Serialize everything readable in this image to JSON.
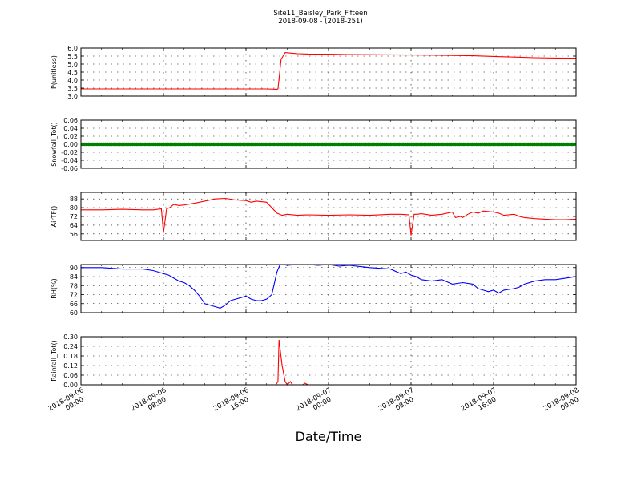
{
  "figure": {
    "title_line1": "Site11_Baisley_Park_Fifteen",
    "title_line2": "2018-09-08 - (2018-251)",
    "xlabel": "Date/Time",
    "x_ticks": [
      {
        "l1": "2018-09-06",
        "l2": "00:00",
        "h": 0
      },
      {
        "l1": "2018-09-06",
        "l2": "08:00",
        "h": 8
      },
      {
        "l1": "2018-09-06",
        "l2": "16:00",
        "h": 16
      },
      {
        "l1": "2018-09-07",
        "l2": "00:00",
        "h": 24
      },
      {
        "l1": "2018-09-07",
        "l2": "08:00",
        "h": 32
      },
      {
        "l1": "2018-09-07",
        "l2": "16:00",
        "h": 40
      },
      {
        "l1": "2018-09-08",
        "l2": "00:00",
        "h": 48
      }
    ]
  },
  "chart_data": [
    {
      "type": "line",
      "ylabel": "P(unitless)",
      "ylim": [
        3.0,
        6.0
      ],
      "yticks": [
        "3.0",
        "3.5",
        "4.0",
        "4.5",
        "5.0",
        "5.5",
        "6.0"
      ],
      "grid": true,
      "color": "#ff0000",
      "series": [
        {
          "x_hours": [
            0,
            18,
            19,
            19.1,
            19.4,
            19.8,
            20.5,
            21,
            22,
            24,
            26,
            28,
            30,
            32,
            34,
            36,
            38,
            40,
            42,
            44,
            46,
            48
          ],
          "values": [
            3.45,
            3.45,
            3.43,
            3.45,
            5.3,
            5.72,
            5.68,
            5.65,
            5.63,
            5.62,
            5.6,
            5.59,
            5.58,
            5.57,
            5.56,
            5.54,
            5.52,
            5.48,
            5.44,
            5.4,
            5.38,
            5.37
          ]
        }
      ]
    },
    {
      "type": "line",
      "ylabel": "Snowfall_Tot()",
      "ylim": [
        -0.06,
        0.06
      ],
      "yticks": [
        "-0.06",
        "-0.04",
        "-0.02",
        "0.00",
        "0.02",
        "0.04",
        "0.06"
      ],
      "grid": true,
      "color": "#008000",
      "markers": true,
      "series": [
        {
          "x_hours": [
            0,
            48
          ],
          "values": [
            0,
            0
          ]
        }
      ]
    },
    {
      "type": "line",
      "ylabel": "AirTF()",
      "ylim": [
        50,
        94
      ],
      "yticks": [
        "56",
        "64",
        "72",
        "80",
        "88"
      ],
      "grid": true,
      "color": "#ff0000",
      "series": [
        {
          "x_hours": [
            0,
            2,
            4,
            6,
            7,
            7.8,
            8,
            8.3,
            8.6,
            9,
            9.5,
            10,
            11,
            12,
            13,
            14,
            15,
            16,
            16.5,
            17,
            17.5,
            18,
            18.5,
            19,
            19.5,
            20,
            21,
            22,
            24,
            26,
            28,
            30,
            31,
            31.8,
            32,
            32.3,
            32.6,
            33,
            34,
            35,
            36,
            36.3,
            36.8,
            37,
            37.5,
            38,
            38.5,
            39,
            40,
            40.5,
            41,
            42,
            42.5,
            43,
            44,
            45,
            46,
            47,
            48
          ],
          "values": [
            78,
            78,
            78.5,
            78,
            78,
            79,
            57,
            79,
            80,
            83,
            82,
            82.5,
            84,
            86,
            88,
            88.5,
            87,
            86.5,
            85,
            86,
            85.5,
            85,
            80,
            75,
            73,
            74,
            73,
            73.5,
            73,
            73.5,
            73,
            74,
            74,
            73.5,
            55,
            74,
            74,
            74.5,
            73,
            74,
            76,
            71,
            72,
            71,
            74,
            76,
            75,
            77,
            76,
            75,
            73,
            74,
            72,
            71,
            70,
            69.5,
            69,
            69,
            69.5
          ]
        }
      ]
    },
    {
      "type": "line",
      "ylabel": "RH(%)",
      "ylim": [
        60,
        92
      ],
      "yticks": [
        "60",
        "66",
        "72",
        "78",
        "84",
        "90"
      ],
      "grid": true,
      "color": "#0000ff",
      "series": [
        {
          "x_hours": [
            0,
            2,
            4,
            6,
            7,
            7.5,
            8,
            8.5,
            9,
            9.5,
            10,
            10.5,
            11,
            11.5,
            12,
            12.5,
            13,
            13.5,
            14,
            14.5,
            15,
            15.5,
            16,
            16.5,
            17,
            17.5,
            18,
            18.5,
            19,
            19.3,
            19.6,
            20,
            21,
            22,
            23,
            24,
            25,
            26,
            28,
            30,
            31,
            31.5,
            32,
            32.5,
            33,
            34,
            35,
            36,
            37,
            38,
            38.5,
            39,
            39.5,
            40,
            40.5,
            41,
            42,
            42.5,
            43,
            44,
            45,
            46,
            47,
            48
          ],
          "values": [
            90,
            90,
            89,
            89,
            88,
            87,
            86,
            85,
            83,
            81,
            80,
            78,
            75,
            71,
            66,
            65,
            64,
            63,
            65,
            68,
            69,
            70,
            71,
            69,
            68,
            68,
            69,
            72,
            87,
            92,
            92,
            91.5,
            92,
            92,
            91.5,
            92,
            91,
            91.5,
            90,
            89,
            86,
            87,
            85,
            84,
            82,
            81,
            82,
            79,
            80,
            79,
            76,
            75,
            74,
            75,
            73,
            75,
            76,
            77,
            79,
            81,
            82,
            82,
            83,
            84
          ]
        }
      ]
    },
    {
      "type": "line",
      "ylabel": "Rainfall_Tot()",
      "ylim": [
        0,
        0.3
      ],
      "yticks": [
        "0.00",
        "0.06",
        "0.12",
        "0.18",
        "0.24",
        "0.30"
      ],
      "grid": true,
      "color": "#ff0000",
      "series": [
        {
          "x_hours": [
            0,
            18.9,
            19.1,
            19.2,
            19.5,
            19.8,
            20.0,
            20.3,
            20.5,
            20.7,
            21.5,
            21.7,
            22,
            48
          ],
          "values": [
            0,
            0,
            0.02,
            0.28,
            0.12,
            0.02,
            0,
            0.02,
            0,
            0,
            0,
            0.01,
            0,
            0
          ]
        }
      ]
    }
  ]
}
